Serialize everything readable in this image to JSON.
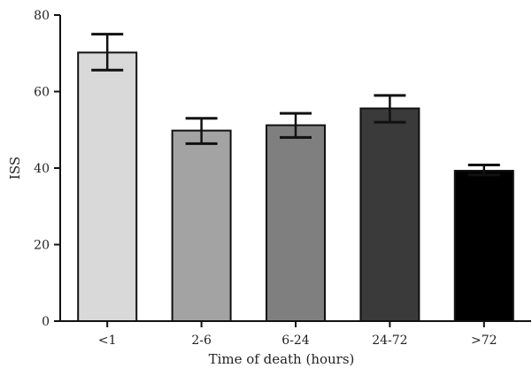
{
  "chart_data": {
    "type": "bar",
    "categories": [
      "<1",
      "2-6",
      "6-24",
      "24-72",
      ">72"
    ],
    "values": [
      70.2,
      49.8,
      51.2,
      55.6,
      39.3
    ],
    "error_upper": [
      75.0,
      53.0,
      54.3,
      59.0,
      40.8
    ],
    "error_lower": [
      65.6,
      46.4,
      48.0,
      52.0,
      38.2
    ],
    "colors": [
      "#d9d9d9",
      "#a3a3a3",
      "#7f7f7f",
      "#3a3a3a",
      "#000000"
    ],
    "xlabel": "Time of death (hours)",
    "ylabel": "ISS",
    "ylim": [
      0,
      80
    ],
    "yticks": [
      0,
      20,
      40,
      60,
      80
    ],
    "grid": false
  }
}
